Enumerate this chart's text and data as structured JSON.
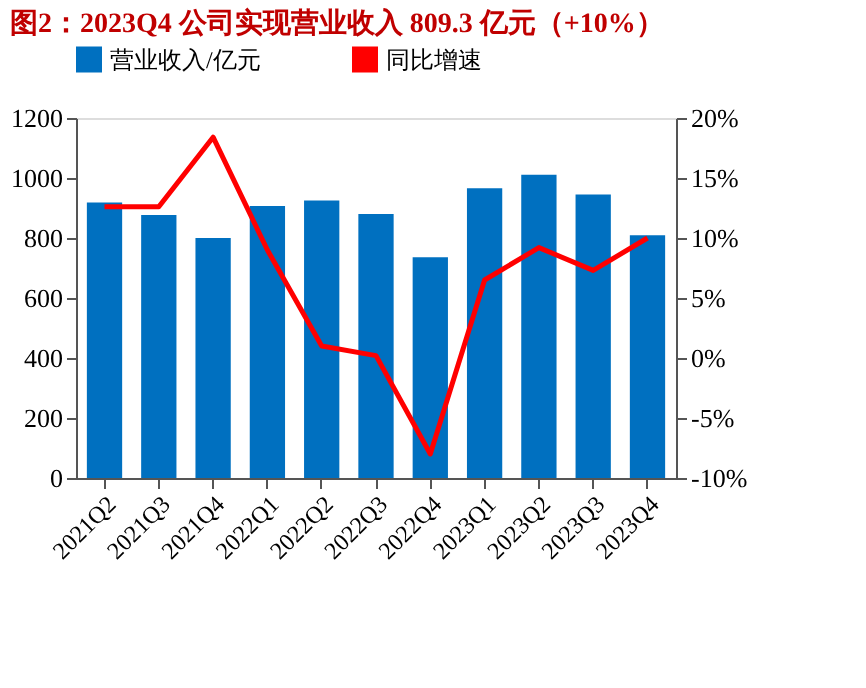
{
  "chart_data": {
    "type": "bar",
    "title": "图2：2023Q4 公司实现营业收入 809.3 亿元（+10%）",
    "categories": [
      "2021Q2",
      "2021Q3",
      "2021Q4",
      "2022Q1",
      "2022Q2",
      "2022Q3",
      "2022Q4",
      "2023Q1",
      "2023Q2",
      "2023Q3",
      "2023Q4"
    ],
    "series": [
      {
        "name": "营业收入/亿元",
        "color": "#0070c0",
        "values": [
          918,
          877,
          800,
          907,
          925,
          880,
          736,
          966,
          1011,
          945,
          809
        ]
      },
      {
        "name": "同比增速",
        "type": "line",
        "axis": "y2",
        "color": "#ff0000",
        "values": [
          12.6,
          12.6,
          18.4,
          9,
          1.0,
          0.2,
          -8.0,
          6.5,
          9.2,
          7.3,
          10
        ]
      }
    ],
    "ylim": [
      0,
      1200
    ],
    "yticks": [
      0,
      200,
      400,
      600,
      800,
      1000,
      1200
    ],
    "y2lim": [
      -10,
      20
    ],
    "y2ticks": [
      {
        "value": -10,
        "label": "-10%"
      },
      {
        "value": -5,
        "label": "-5%"
      },
      {
        "value": 0,
        "label": "0%"
      },
      {
        "value": 5,
        "label": "5%"
      },
      {
        "value": 10,
        "label": "10%"
      },
      {
        "value": 15,
        "label": "15%"
      },
      {
        "value": 20,
        "label": "20%"
      }
    ],
    "legend": "top",
    "grid": false,
    "marker": "none",
    "line_style": "solid"
  }
}
